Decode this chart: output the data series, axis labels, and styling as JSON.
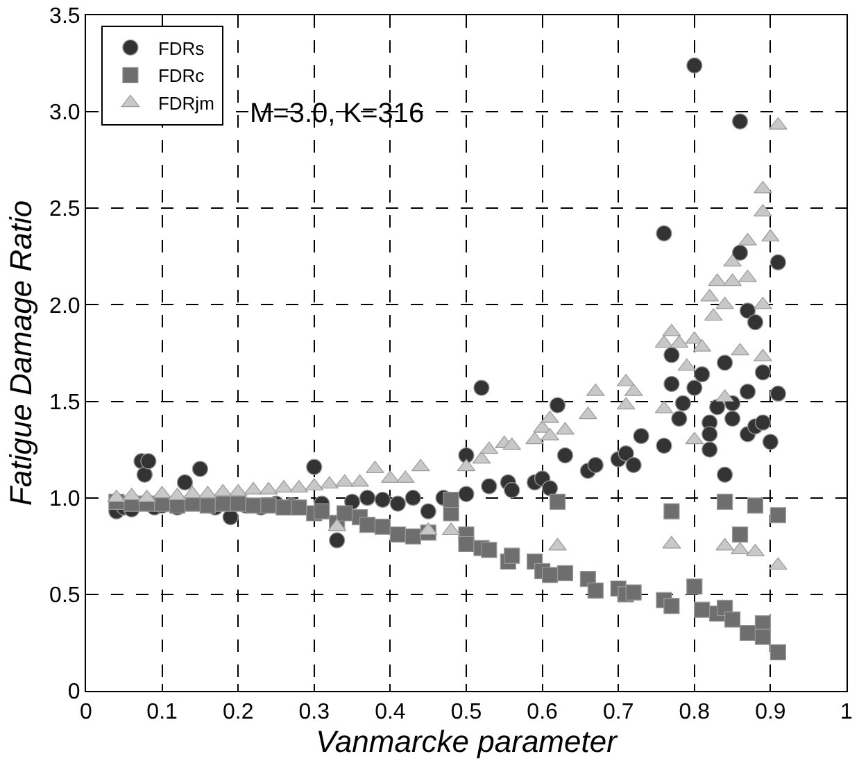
{
  "chart_data": {
    "type": "scatter",
    "xlabel": "Vanmarcke parameter",
    "ylabel": "Fatigue Damage Ratio",
    "annotations": [
      "M=3.0, K=316"
    ],
    "xlim": [
      0,
      1
    ],
    "ylim": [
      0,
      3.5
    ],
    "xticks": [
      0,
      0.1,
      0.2,
      0.3,
      0.4,
      0.5,
      0.6,
      0.7,
      0.8,
      0.9,
      1
    ],
    "yticks": [
      0,
      0.5,
      {
        "value": 1,
        "label": "1.0"
      },
      1.5,
      {
        "value": 2,
        "label": "2.0"
      },
      2.5,
      {
        "value": 3,
        "label": "3.0"
      },
      3.5
    ],
    "grid": true,
    "legend": "top left",
    "series": [
      {
        "name": "FDRs",
        "color": "#333333",
        "marker": "circle",
        "x": [
          0.04,
          0.05,
          0.06,
          0.073,
          0.077,
          0.082,
          0.09,
          0.1,
          0.12,
          0.13,
          0.15,
          0.17,
          0.19,
          0.21,
          0.23,
          0.25,
          0.27,
          0.3,
          0.31,
          0.33,
          0.35,
          0.37,
          0.39,
          0.41,
          0.43,
          0.45,
          0.47,
          0.5,
          0.5,
          0.52,
          0.53,
          0.555,
          0.56,
          0.59,
          0.6,
          0.61,
          0.62,
          0.63,
          0.66,
          0.67,
          0.7,
          0.71,
          0.72,
          0.73,
          0.76,
          0.76,
          0.77,
          0.77,
          0.78,
          0.785,
          0.8,
          0.8,
          0.81,
          0.82,
          0.82,
          0.82,
          0.83,
          0.84,
          0.84,
          0.85,
          0.85,
          0.86,
          0.86,
          0.87,
          0.87,
          0.87,
          0.88,
          0.88,
          0.89,
          0.89,
          0.9,
          0.91,
          0.91
        ],
        "values": [
          0.93,
          0.95,
          0.94,
          1.19,
          1.12,
          1.19,
          0.95,
          0.96,
          0.95,
          1.08,
          1.15,
          0.95,
          0.9,
          0.96,
          0.95,
          0.97,
          0.96,
          1.16,
          0.97,
          0.78,
          0.98,
          1.0,
          0.99,
          0.97,
          1.0,
          0.93,
          1.0,
          1.22,
          1.02,
          1.57,
          1.06,
          1.08,
          1.04,
          1.08,
          1.1,
          1.05,
          1.48,
          1.22,
          1.14,
          1.17,
          1.2,
          1.23,
          1.17,
          1.32,
          1.27,
          2.37,
          1.74,
          1.59,
          1.41,
          1.49,
          3.24,
          1.57,
          1.64,
          1.39,
          1.33,
          1.25,
          1.47,
          1.7,
          1.12,
          1.49,
          1.41,
          2.95,
          2.27,
          1.97,
          1.55,
          1.33,
          1.91,
          1.37,
          1.65,
          1.39,
          1.29,
          2.22,
          1.54
        ]
      },
      {
        "name": "FDRc",
        "color": "#6e6e6e",
        "marker": "square",
        "x": [
          0.04,
          0.06,
          0.08,
          0.1,
          0.12,
          0.14,
          0.16,
          0.18,
          0.2,
          0.22,
          0.24,
          0.26,
          0.28,
          0.3,
          0.31,
          0.33,
          0.34,
          0.36,
          0.37,
          0.39,
          0.41,
          0.43,
          0.45,
          0.48,
          0.48,
          0.5,
          0.5,
          0.52,
          0.53,
          0.555,
          0.56,
          0.59,
          0.6,
          0.61,
          0.62,
          0.63,
          0.66,
          0.67,
          0.7,
          0.71,
          0.72,
          0.76,
          0.77,
          0.77,
          0.8,
          0.81,
          0.83,
          0.84,
          0.84,
          0.85,
          0.86,
          0.87,
          0.88,
          0.89,
          0.89,
          0.91,
          0.91
        ],
        "values": [
          0.98,
          0.97,
          0.97,
          0.97,
          0.96,
          0.97,
          0.96,
          0.97,
          0.97,
          0.96,
          0.96,
          0.95,
          0.95,
          0.92,
          0.93,
          0.87,
          0.92,
          0.9,
          0.86,
          0.85,
          0.81,
          0.8,
          0.82,
          0.92,
          0.99,
          0.81,
          0.76,
          0.74,
          0.73,
          0.67,
          0.7,
          0.67,
          0.62,
          0.6,
          0.98,
          0.61,
          0.58,
          0.52,
          0.53,
          0.5,
          0.51,
          0.47,
          0.93,
          0.44,
          0.54,
          0.42,
          0.4,
          0.98,
          0.43,
          0.37,
          0.81,
          0.3,
          0.96,
          0.35,
          0.28,
          0.91,
          0.2
        ]
      },
      {
        "name": "FDRjm",
        "color": "#c8c8c8",
        "marker": "triangle",
        "x": [
          0.04,
          0.06,
          0.08,
          0.1,
          0.12,
          0.14,
          0.16,
          0.18,
          0.2,
          0.22,
          0.24,
          0.26,
          0.28,
          0.3,
          0.32,
          0.33,
          0.34,
          0.36,
          0.38,
          0.4,
          0.42,
          0.44,
          0.45,
          0.48,
          0.5,
          0.52,
          0.53,
          0.55,
          0.56,
          0.59,
          0.6,
          0.61,
          0.61,
          0.62,
          0.63,
          0.66,
          0.67,
          0.71,
          0.71,
          0.72,
          0.76,
          0.76,
          0.77,
          0.77,
          0.77,
          0.78,
          0.79,
          0.8,
          0.8,
          0.81,
          0.82,
          0.825,
          0.83,
          0.84,
          0.84,
          0.84,
          0.85,
          0.85,
          0.86,
          0.86,
          0.87,
          0.87,
          0.88,
          0.89,
          0.89,
          0.89,
          0.89,
          0.9,
          0.91,
          0.91
        ],
        "values": [
          1.0,
          1.01,
          1.0,
          1.02,
          1.01,
          1.02,
          1.02,
          1.03,
          1.03,
          1.04,
          1.04,
          1.05,
          1.05,
          1.06,
          1.07,
          0.85,
          1.08,
          1.08,
          1.15,
          1.1,
          1.1,
          1.16,
          0.83,
          0.83,
          1.16,
          1.2,
          1.25,
          1.28,
          1.27,
          1.3,
          1.36,
          1.32,
          1.41,
          0.75,
          1.35,
          1.43,
          1.55,
          1.6,
          1.48,
          1.55,
          1.8,
          1.46,
          1.86,
          0.76,
          0.76,
          1.8,
          1.68,
          1.82,
          1.3,
          1.78,
          2.04,
          1.94,
          2.12,
          2.0,
          1.52,
          0.75,
          2.22,
          2.12,
          1.76,
          0.73,
          2.33,
          2.14,
          0.72,
          2.6,
          2.48,
          2.0,
          1.73,
          2.35,
          2.93,
          0.65
        ]
      }
    ]
  }
}
